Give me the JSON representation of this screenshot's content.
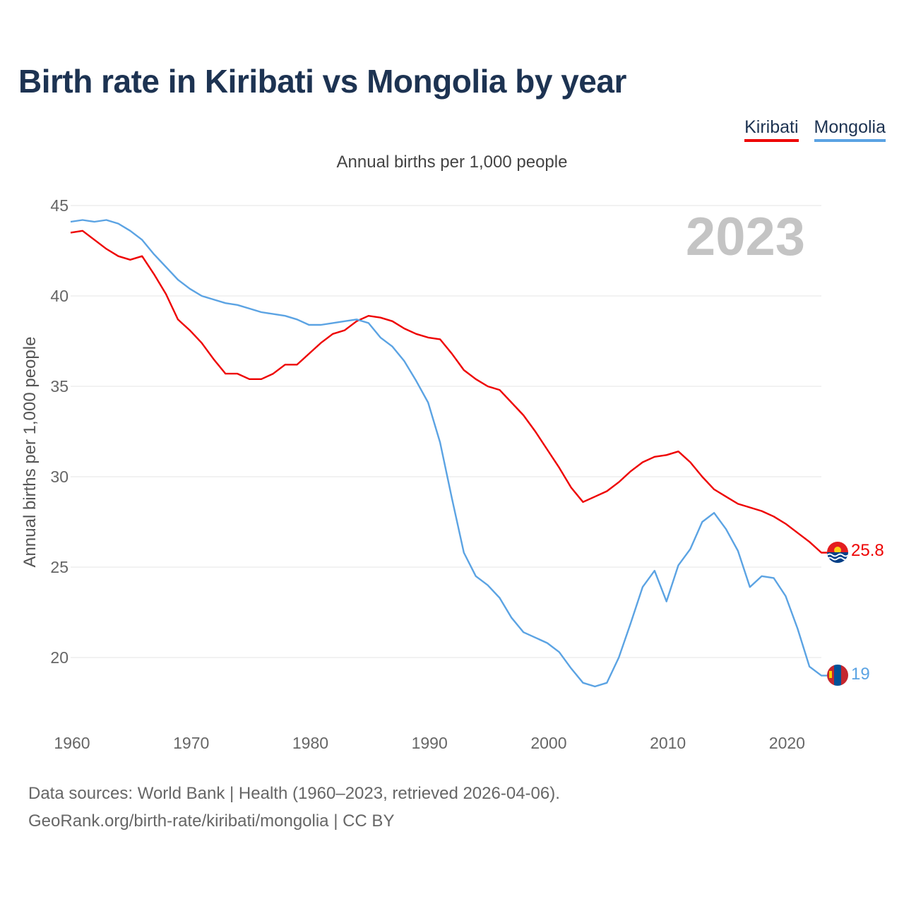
{
  "title": "Birth rate in Kiribati vs Mongolia by year",
  "legend": {
    "kiribati": "Kiribati",
    "mongolia": "Mongolia"
  },
  "subtitle": "Annual births per 1,000 people",
  "footer": {
    "line1": "Data sources: World Bank | Health (1960–2023, retrieved 2026-04-06).",
    "line2": "GeoRank.org/birth-rate/kiribati/mongolia | CC BY"
  },
  "chart_data": {
    "type": "line",
    "title": "Birth rate in Kiribati vs Mongolia by year",
    "ylabel": "Annual births per 1,000 people",
    "xlabel": "",
    "year_marker": "2023",
    "xlim": [
      1960,
      2023
    ],
    "ylim": [
      16.5,
      45
    ],
    "x_ticks": [
      "1960",
      "1970",
      "1980",
      "1990",
      "2000",
      "2010",
      "2020"
    ],
    "y_ticks": [
      "20",
      "25",
      "30",
      "35",
      "40",
      "45"
    ],
    "grid": true,
    "legend": "top-right",
    "x": [
      1960,
      1961,
      1962,
      1963,
      1964,
      1965,
      1966,
      1967,
      1968,
      1969,
      1970,
      1971,
      1972,
      1973,
      1974,
      1975,
      1976,
      1977,
      1978,
      1979,
      1980,
      1981,
      1982,
      1983,
      1984,
      1985,
      1986,
      1987,
      1988,
      1989,
      1990,
      1991,
      1992,
      1993,
      1994,
      1995,
      1996,
      1997,
      1998,
      1999,
      2000,
      2001,
      2002,
      2003,
      2004,
      2005,
      2006,
      2007,
      2008,
      2009,
      2010,
      2011,
      2012,
      2013,
      2014,
      2015,
      2016,
      2017,
      2018,
      2019,
      2020,
      2021,
      2022,
      2023
    ],
    "series": [
      {
        "name": "Kiribati",
        "color": "#ee0000",
        "end_label": "25.8",
        "values": [
          43.5,
          43.6,
          43.1,
          42.6,
          42.2,
          42.0,
          42.2,
          41.2,
          40.1,
          38.7,
          38.1,
          37.4,
          36.5,
          35.7,
          35.7,
          35.4,
          35.4,
          35.7,
          36.2,
          36.2,
          36.8,
          37.4,
          37.9,
          38.1,
          38.6,
          38.9,
          38.8,
          38.6,
          38.2,
          37.9,
          37.7,
          37.6,
          36.8,
          35.9,
          35.4,
          35.0,
          34.8,
          34.1,
          33.4,
          32.5,
          31.5,
          30.5,
          29.4,
          28.6,
          28.9,
          29.2,
          29.7,
          30.3,
          30.8,
          31.1,
          31.2,
          31.4,
          30.8,
          30.0,
          29.3,
          28.9,
          28.5,
          28.3,
          28.1,
          27.8,
          27.4,
          26.9,
          26.4,
          25.8
        ]
      },
      {
        "name": "Mongolia",
        "color": "#5ba3e3",
        "end_label": "19",
        "values": [
          44.1,
          44.2,
          44.1,
          44.2,
          44.0,
          43.6,
          43.1,
          42.3,
          41.6,
          40.9,
          40.4,
          40.0,
          39.8,
          39.6,
          39.5,
          39.3,
          39.1,
          39.0,
          38.9,
          38.7,
          38.4,
          38.4,
          38.5,
          38.6,
          38.7,
          38.5,
          37.7,
          37.2,
          36.4,
          35.3,
          34.1,
          31.9,
          28.8,
          25.8,
          24.5,
          24.0,
          23.3,
          22.2,
          21.4,
          21.1,
          20.8,
          20.3,
          19.4,
          18.6,
          18.4,
          18.6,
          20.0,
          21.9,
          23.9,
          24.8,
          23.1,
          25.1,
          26.0,
          27.5,
          28.0,
          27.1,
          25.9,
          23.9,
          24.5,
          24.4,
          23.4,
          21.6,
          19.5,
          19.0
        ]
      }
    ]
  }
}
